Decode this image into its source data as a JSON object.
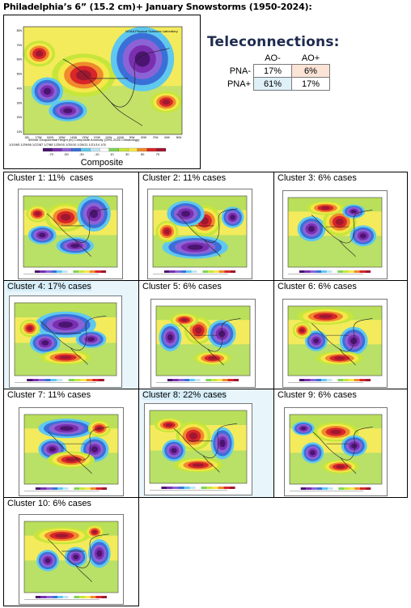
{
  "title": "Philadelphia’s 6” (15.2 cm)+ January Snowstorms (1950-2024):",
  "composite": {
    "label": "Composite",
    "header_text": "NOAA Physical Sciences Laboratory",
    "caption_line1": "500mb Geopotential Height (m) Composite Anomaly (1991-2020 Climatology)",
    "caption_line2": "1/10/65  1/29/66  1/22/87  1/7/88  1/25/00  1/30/10  1/26/11  1/21/14  1/3/",
    "colorbar_ticks": [
      "-70",
      "-50",
      "-30",
      "-10",
      "10",
      "30",
      "50",
      "70"
    ],
    "lat_labels": [
      "80N",
      "70N",
      "60N",
      "50N",
      "40N",
      "30N",
      "20N",
      "10N"
    ],
    "lon_labels": [
      "180",
      "170W",
      "160W",
      "150W",
      "140W",
      "130W",
      "120W",
      "110W",
      "100W",
      "90W",
      "80W",
      "70W",
      "60W",
      "50W"
    ]
  },
  "teleconnections": {
    "title": "Teleconnections:",
    "columns": [
      "AO-",
      "AO+"
    ],
    "rows": [
      {
        "label": "PNA-",
        "values": [
          "17%",
          "6%"
        ]
      },
      {
        "label": "PNA+",
        "values": [
          "61%",
          "17%"
        ]
      }
    ]
  },
  "clusters": [
    {
      "label": "Cluster 1: 11%  cases"
    },
    {
      "label": "Cluster 2: 11% cases"
    },
    {
      "label": "Cluster 3: 6% cases"
    },
    {
      "label": "Cluster 4: 17% cases"
    },
    {
      "label": "Cluster 5: 6% cases"
    },
    {
      "label": "Cluster 6: 6% cases"
    },
    {
      "label": "Cluster 7: 11% cases"
    },
    {
      "label": "Cluster 8: 22% cases"
    },
    {
      "label": "Cluster 9: 6% cases"
    },
    {
      "label": "Cluster 10: 6% cases"
    }
  ],
  "colors": {
    "purple": "#7a2fb0",
    "blue": "#3b6fd8",
    "lightblue": "#5fc8ee",
    "green": "#7fd45a",
    "yellow": "#f5e84a",
    "orange": "#f08a2c",
    "red": "#d8262a",
    "highlight": "#d7eef9"
  }
}
